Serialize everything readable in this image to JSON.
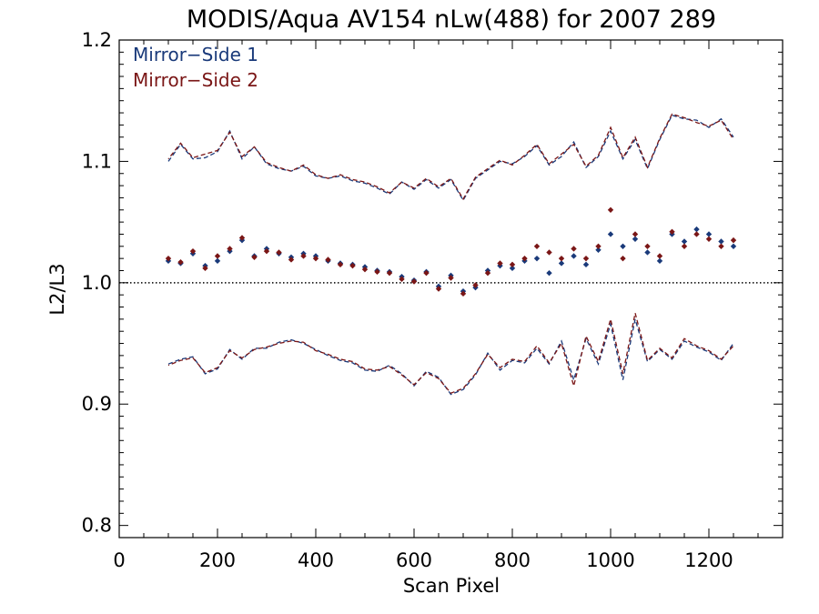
{
  "chart_data": {
    "type": "scatter",
    "title": "MODIS/Aqua AV154 nLw(488) for 2007 289",
    "xlabel": "Scan Pixel",
    "ylabel": "L2/L3",
    "xlim": [
      0,
      1350
    ],
    "ylim": [
      0.79,
      1.2
    ],
    "x_ticks": [
      0,
      200,
      400,
      600,
      800,
      1000,
      1200
    ],
    "x_tick_labels": [
      "0",
      "200",
      "400",
      "600",
      "800",
      "1000",
      "1200"
    ],
    "y_ticks": [
      0.8,
      0.9,
      1.0,
      1.1,
      1.2
    ],
    "y_tick_labels": [
      "0.8",
      "0.9",
      "1.0",
      "1.1",
      "1.2"
    ],
    "reference_line": {
      "y": 1.0,
      "style": "dotted"
    },
    "legend": {
      "position": "top-left"
    },
    "grid": false,
    "series": [
      {
        "name": "Mirror−Side 1",
        "color": "#1a3a7a",
        "x": [
          100,
          125,
          150,
          175,
          200,
          225,
          250,
          275,
          300,
          325,
          350,
          375,
          400,
          425,
          450,
          475,
          500,
          525,
          550,
          575,
          600,
          625,
          650,
          675,
          700,
          725,
          750,
          775,
          800,
          825,
          850,
          875,
          900,
          925,
          950,
          975,
          1000,
          1025,
          1050,
          1075,
          1100,
          1125,
          1150,
          1175,
          1200,
          1225,
          1250
        ],
        "y": [
          1.018,
          1.016,
          1.024,
          1.014,
          1.018,
          1.026,
          1.035,
          1.022,
          1.028,
          1.024,
          1.021,
          1.024,
          1.022,
          1.018,
          1.016,
          1.015,
          1.013,
          1.01,
          1.009,
          1.005,
          1.002,
          1.009,
          0.997,
          1.006,
          0.993,
          0.996,
          1.01,
          1.014,
          1.012,
          1.018,
          1.02,
          1.008,
          1.016,
          1.022,
          1.015,
          1.027,
          1.04,
          1.03,
          1.036,
          1.025,
          1.018,
          1.04,
          1.034,
          1.044,
          1.04,
          1.034,
          1.03
        ],
        "upper": [
          1.1,
          1.114,
          1.102,
          1.103,
          1.108,
          1.125,
          1.102,
          1.112,
          1.098,
          1.094,
          1.092,
          1.096,
          1.088,
          1.086,
          1.088,
          1.084,
          1.082,
          1.078,
          1.073,
          1.083,
          1.077,
          1.085,
          1.078,
          1.085,
          1.068,
          1.086,
          1.093,
          1.1,
          1.098,
          1.104,
          1.113,
          1.097,
          1.104,
          1.116,
          1.095,
          1.104,
          1.125,
          1.102,
          1.118,
          1.094,
          1.118,
          1.138,
          1.135,
          1.134,
          1.128,
          1.135,
          1.12
        ],
        "lower": [
          0.933,
          0.937,
          0.939,
          0.925,
          0.929,
          0.945,
          0.937,
          0.946,
          0.946,
          0.951,
          0.953,
          0.95,
          0.945,
          0.94,
          0.936,
          0.934,
          0.928,
          0.927,
          0.932,
          0.925,
          0.915,
          0.927,
          0.922,
          0.908,
          0.912,
          0.924,
          0.942,
          0.928,
          0.936,
          0.934,
          0.946,
          0.933,
          0.952,
          0.92,
          0.954,
          0.933,
          0.966,
          0.92,
          0.97,
          0.935,
          0.945,
          0.937,
          0.952,
          0.947,
          0.943,
          0.936,
          0.95
        ]
      },
      {
        "name": "Mirror−Side 2",
        "color": "#7a1616",
        "x": [
          100,
          125,
          150,
          175,
          200,
          225,
          250,
          275,
          300,
          325,
          350,
          375,
          400,
          425,
          450,
          475,
          500,
          525,
          550,
          575,
          600,
          625,
          650,
          675,
          700,
          725,
          750,
          775,
          800,
          825,
          850,
          875,
          900,
          925,
          950,
          975,
          1000,
          1025,
          1050,
          1075,
          1100,
          1125,
          1150,
          1175,
          1200,
          1225,
          1250
        ],
        "y": [
          1.02,
          1.017,
          1.026,
          1.012,
          1.022,
          1.028,
          1.037,
          1.021,
          1.026,
          1.025,
          1.019,
          1.022,
          1.02,
          1.019,
          1.015,
          1.014,
          1.011,
          1.009,
          1.008,
          1.003,
          1.001,
          1.008,
          0.995,
          1.004,
          0.991,
          0.998,
          1.008,
          1.016,
          1.015,
          1.02,
          1.03,
          1.025,
          1.02,
          1.028,
          1.02,
          1.03,
          1.06,
          1.02,
          1.04,
          1.03,
          1.022,
          1.042,
          1.03,
          1.04,
          1.036,
          1.03,
          1.035
        ],
        "upper": [
          1.102,
          1.115,
          1.103,
          1.106,
          1.109,
          1.124,
          1.104,
          1.112,
          1.099,
          1.095,
          1.092,
          1.097,
          1.089,
          1.086,
          1.089,
          1.085,
          1.083,
          1.079,
          1.074,
          1.083,
          1.078,
          1.086,
          1.079,
          1.086,
          1.069,
          1.087,
          1.094,
          1.101,
          1.097,
          1.105,
          1.114,
          1.098,
          1.106,
          1.114,
          1.096,
          1.105,
          1.128,
          1.103,
          1.12,
          1.095,
          1.119,
          1.139,
          1.136,
          1.132,
          1.129,
          1.134,
          1.118
        ],
        "lower": [
          0.932,
          0.936,
          0.938,
          0.926,
          0.93,
          0.944,
          0.938,
          0.945,
          0.947,
          0.95,
          0.952,
          0.951,
          0.944,
          0.941,
          0.937,
          0.935,
          0.929,
          0.928,
          0.931,
          0.924,
          0.916,
          0.926,
          0.921,
          0.909,
          0.913,
          0.925,
          0.941,
          0.93,
          0.937,
          0.935,
          0.948,
          0.934,
          0.95,
          0.915,
          0.956,
          0.935,
          0.97,
          0.925,
          0.975,
          0.936,
          0.946,
          0.938,
          0.954,
          0.948,
          0.944,
          0.937,
          0.948
        ]
      }
    ]
  }
}
